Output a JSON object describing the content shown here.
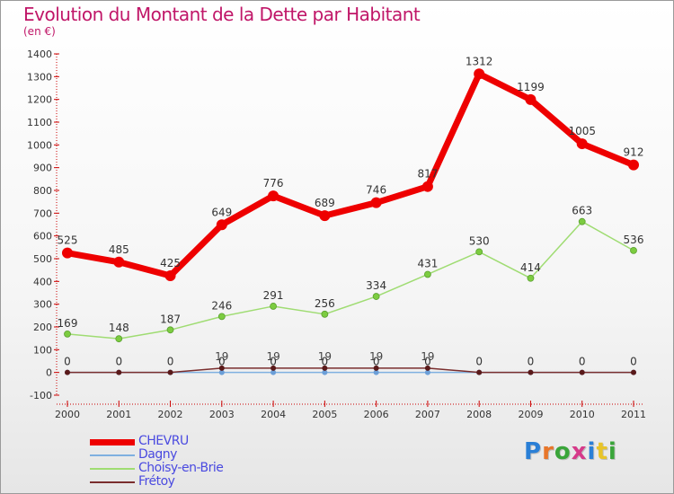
{
  "title": "Evolution du Montant de la Dette par Habitant",
  "subtitle": "(en €)",
  "logo": {
    "text": "Proxiti",
    "letter_colors": [
      "#2a7fd6",
      "#e8762a",
      "#3aa53a",
      "#d63a8a",
      "#2a7fd6",
      "#e8c42a",
      "#3aa53a"
    ]
  },
  "chart_data": {
    "type": "line",
    "title": "Evolution du Montant de la Dette par Habitant",
    "subtitle": "(en €)",
    "xlabel": "",
    "ylabel": "",
    "x": [
      "2000",
      "2001",
      "2002",
      "2003",
      "2004",
      "2005",
      "2006",
      "2007",
      "2008",
      "2009",
      "2010",
      "2011"
    ],
    "ylim": [
      -100,
      1400
    ],
    "yticks": [
      -100,
      0,
      100,
      200,
      300,
      400,
      500,
      600,
      700,
      800,
      900,
      1000,
      1100,
      1200,
      1300,
      1400
    ],
    "grid": false,
    "legend_position": "bottom-left",
    "series": [
      {
        "name": "CHEVRU",
        "color": "#ee0000",
        "values": [
          525,
          485,
          425,
          649,
          776,
          689,
          746,
          817,
          1312,
          1199,
          1005,
          912
        ],
        "labels": [
          "525",
          "485",
          "425",
          "649",
          "776",
          "689",
          "746",
          "817",
          "1312",
          "1199",
          "1005",
          "912"
        ]
      },
      {
        "name": "Dagny",
        "color": "#7fb0e0",
        "values": [
          0,
          0,
          0,
          0,
          0,
          0,
          0,
          0,
          0,
          0,
          0,
          0
        ],
        "labels": [
          "0",
          "0",
          "0",
          "0",
          "0",
          "0",
          "0",
          "0",
          "0",
          "0",
          "0",
          "0"
        ]
      },
      {
        "name": "Choisy-en-Brie",
        "color": "#9fdc72",
        "values": [
          169,
          148,
          187,
          246,
          291,
          256,
          334,
          431,
          530,
          414,
          663,
          536
        ],
        "labels": [
          "169",
          "148",
          "187",
          "246",
          "291",
          "256",
          "334",
          "431",
          "530",
          "414",
          "663",
          "536"
        ]
      },
      {
        "name": "Frétoy",
        "color": "#7a2e2e",
        "values": [
          0,
          0,
          0,
          19,
          19,
          19,
          19,
          19,
          0,
          0,
          0,
          0
        ],
        "labels": [
          "",
          "",
          "",
          "19",
          "19",
          "19",
          "19",
          "19",
          "",
          "",
          "",
          ""
        ]
      }
    ]
  }
}
